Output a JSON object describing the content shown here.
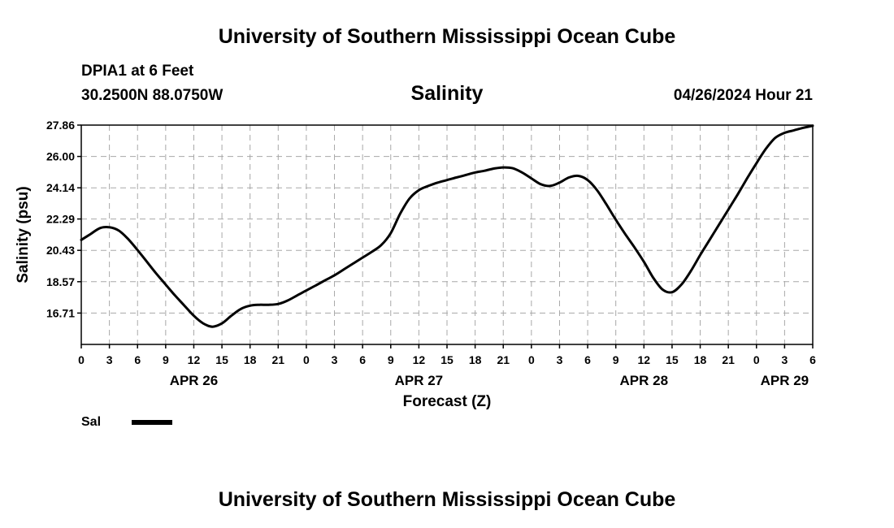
{
  "page": {
    "title": "University of Southern Mississippi Ocean Cube",
    "station": "DPIA1 at 6 Feet",
    "coordinates": "30.2500N  88.0750W",
    "datetime": "04/26/2024 Hour 21",
    "footer_title": "University of Southern Mississippi Ocean Cube"
  },
  "chart_data": {
    "type": "line",
    "title": "Salinity",
    "xlabel": "Forecast (Z)",
    "ylabel": "Salinity (psu)",
    "ylim": [
      14.85,
      27.86
    ],
    "yticks": [
      "16.71",
      "18.57",
      "20.43",
      "22.29",
      "24.14",
      "26.00",
      "27.86"
    ],
    "x_unit": "hours since APR 26 00Z",
    "xlim": [
      0,
      78
    ],
    "xtick_hours": [
      0,
      3,
      6,
      9,
      12,
      15,
      18,
      21,
      24,
      27,
      30,
      33,
      36,
      39,
      42,
      45,
      48,
      51,
      54,
      57,
      60,
      63,
      66,
      69,
      72,
      75,
      78
    ],
    "xtick_labels": [
      "0",
      "3",
      "6",
      "9",
      "12",
      "15",
      "18",
      "21",
      "0",
      "3",
      "6",
      "9",
      "12",
      "15",
      "18",
      "21",
      "0",
      "3",
      "6",
      "9",
      "12",
      "15",
      "18",
      "21",
      "0",
      "3",
      "6"
    ],
    "date_labels": [
      {
        "hour": 12,
        "label": "APR 26"
      },
      {
        "hour": 36,
        "label": "APR 27"
      },
      {
        "hour": 60,
        "label": "APR 28"
      },
      {
        "hour": 75,
        "label": "APR 29"
      }
    ],
    "grid": true,
    "legend": "bottom-left",
    "series": [
      {
        "name": "Sal",
        "color": "#000000",
        "x": [
          0,
          1,
          2,
          3,
          4,
          5,
          6,
          7,
          8,
          9,
          10,
          11,
          12,
          13,
          14,
          15,
          16,
          17,
          18,
          19,
          20,
          21,
          22,
          23,
          24,
          25,
          26,
          27,
          28,
          29,
          30,
          31,
          32,
          33,
          34,
          35,
          36,
          37,
          38,
          39,
          40,
          41,
          42,
          43,
          44,
          45,
          46,
          47,
          48,
          49,
          50,
          51,
          52,
          53,
          54,
          55,
          56,
          57,
          58,
          59,
          60,
          61,
          62,
          63,
          64,
          65,
          66,
          67,
          68,
          69,
          70,
          71,
          72,
          73,
          74,
          75,
          76,
          77,
          78
        ],
        "values": [
          21.05,
          21.4,
          21.75,
          21.8,
          21.6,
          21.1,
          20.45,
          19.75,
          19.05,
          18.4,
          17.75,
          17.15,
          16.55,
          16.1,
          15.9,
          16.1,
          16.55,
          16.95,
          17.15,
          17.2,
          17.2,
          17.25,
          17.45,
          17.75,
          18.05,
          18.35,
          18.65,
          18.95,
          19.3,
          19.65,
          20.0,
          20.35,
          20.75,
          21.45,
          22.6,
          23.5,
          24.0,
          24.25,
          24.45,
          24.6,
          24.75,
          24.9,
          25.05,
          25.15,
          25.28,
          25.35,
          25.3,
          25.05,
          24.7,
          24.35,
          24.25,
          24.45,
          24.75,
          24.85,
          24.6,
          24.0,
          23.15,
          22.25,
          21.4,
          20.6,
          19.75,
          18.8,
          18.1,
          17.95,
          18.4,
          19.2,
          20.15,
          21.05,
          21.95,
          22.85,
          23.75,
          24.7,
          25.6,
          26.45,
          27.1,
          27.4,
          27.55,
          27.7,
          27.82
        ]
      }
    ]
  }
}
